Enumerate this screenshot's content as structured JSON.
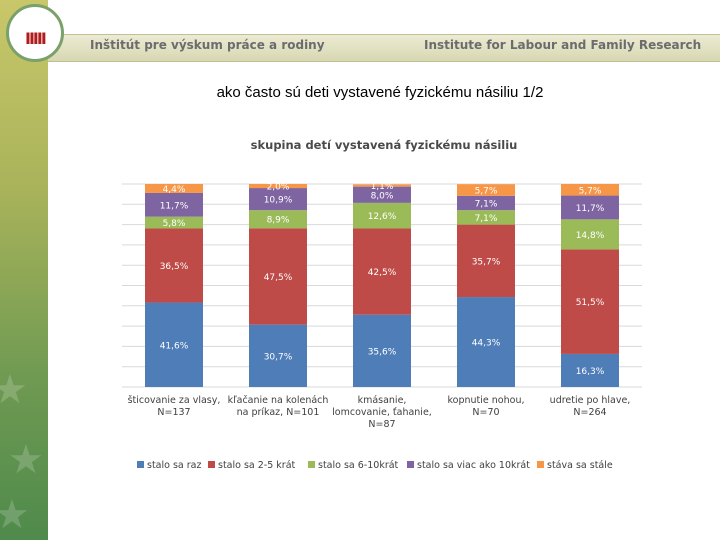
{
  "header": {
    "logo_mark": "IIIII",
    "title_sk": "Inštitút pre výskum práce a rodiny",
    "title_en": "Institute for Labour and Family Research"
  },
  "slide": {
    "title": "ako často sú deti vystavené fyzickému násiliu 1/2"
  },
  "colors": {
    "sidebar": "#6f9a52",
    "accent": "#b01c1c"
  },
  "chart_data": {
    "type": "bar",
    "stacked": true,
    "title": "skupina detí vystavená fyzickému násiliu",
    "categories": [
      [
        "šticovanie za vlasy,",
        "N=137"
      ],
      [
        "kľačanie na kolenách",
        "na príkaz, N=101"
      ],
      [
        "kmásanie,",
        "lomcovanie, ťahanie,",
        "N=87"
      ],
      [
        "kopnutie nohou,",
        "N=70"
      ],
      [
        "udretie po hlave,",
        "N=264"
      ]
    ],
    "series": [
      {
        "name": "stalo sa raz",
        "color": "#4f7db8",
        "values": [
          41.6,
          30.7,
          35.6,
          44.3,
          16.3
        ],
        "labels": [
          "41,6%",
          "30,7%",
          "35,6%",
          "44,3%",
          "16,3%"
        ]
      },
      {
        "name": "stalo sa 2-5 krát",
        "color": "#be4b48",
        "values": [
          36.5,
          47.5,
          42.5,
          35.7,
          51.5
        ],
        "labels": [
          "36,5%",
          "47,5%",
          "42,5%",
          "35,7%",
          "51,5%"
        ]
      },
      {
        "name": "stalo sa 6-10krát",
        "color": "#9bbb59",
        "values": [
          5.8,
          8.9,
          12.6,
          7.1,
          14.8
        ],
        "labels": [
          "5,8%",
          "8,9%",
          "12,6%",
          "7,1%",
          "14,8%"
        ]
      },
      {
        "name": "stalo sa viac ako 10krát",
        "color": "#7f64a2",
        "values": [
          11.7,
          10.9,
          8.0,
          7.1,
          11.7
        ],
        "labels": [
          "11,7%",
          "10,9%",
          "8,0%",
          "7,1%",
          "11,7%"
        ]
      },
      {
        "name": "stáva sa stále",
        "color": "#f79646",
        "values": [
          4.4,
          2.0,
          1.1,
          5.7,
          5.7
        ],
        "labels": [
          "4,4%",
          "2,0%",
          "1,1%",
          "5,7%",
          "5,7%"
        ]
      }
    ],
    "ylim": [
      0,
      100
    ],
    "grid": true,
    "legend": "bottom"
  }
}
